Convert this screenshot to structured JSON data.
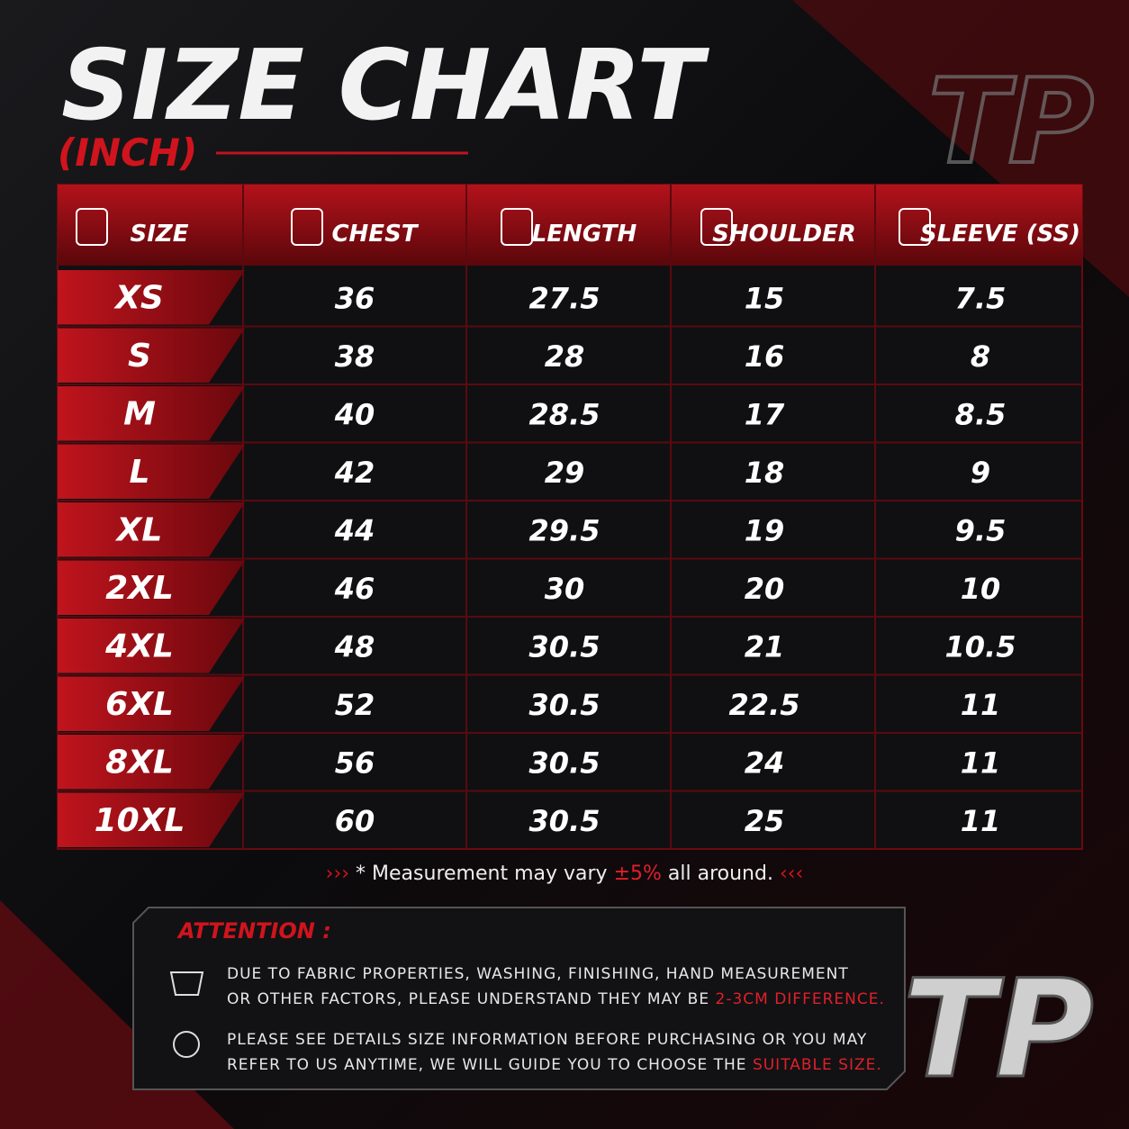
{
  "header": {
    "title": "SIZE CHART",
    "subtitle": "(INCH)",
    "logo": "TP"
  },
  "table": {
    "columns": [
      "SIZE",
      "CHEST",
      "LENGTH",
      "SHOULDER",
      "SLEEVE (SS)"
    ],
    "rows": [
      [
        "XS",
        "36",
        "27.5",
        "15",
        "7.5"
      ],
      [
        "S",
        "38",
        "28",
        "16",
        "8"
      ],
      [
        "M",
        "40",
        "28.5",
        "17",
        "8.5"
      ],
      [
        "L",
        "42",
        "29",
        "18",
        "9"
      ],
      [
        "XL",
        "44",
        "29.5",
        "19",
        "9.5"
      ],
      [
        "2XL",
        "46",
        "30",
        "20",
        "10"
      ],
      [
        "4XL",
        "48",
        "30.5",
        "21",
        "10.5"
      ],
      [
        "6XL",
        "52",
        "30.5",
        "22.5",
        "11"
      ],
      [
        "8XL",
        "56",
        "30.5",
        "24",
        "11"
      ],
      [
        "10XL",
        "60",
        "30.5",
        "25",
        "11"
      ]
    ]
  },
  "note": {
    "before": "* Measurement may vary ",
    "highlight": "±5%",
    "after": " all around."
  },
  "attention": {
    "title": "ATTENTION :",
    "items": [
      {
        "lines": [
          "DUE TO FABRIC PROPERTIES, WASHING, FINISHING, HAND MEASUREMENT",
          "OR OTHER FACTORS, PLEASE UNDERSTAND THEY MAY BE "
        ],
        "highlight": "2-3CM DIFFERENCE."
      },
      {
        "lines": [
          "PLEASE SEE DETAILS SIZE INFORMATION BEFORE PURCHASING OR YOU MAY",
          "REFER TO US ANYTIME, WE WILL GUIDE YOU TO CHOOSE THE "
        ],
        "highlight": "SUITABLE SIZE."
      }
    ]
  }
}
